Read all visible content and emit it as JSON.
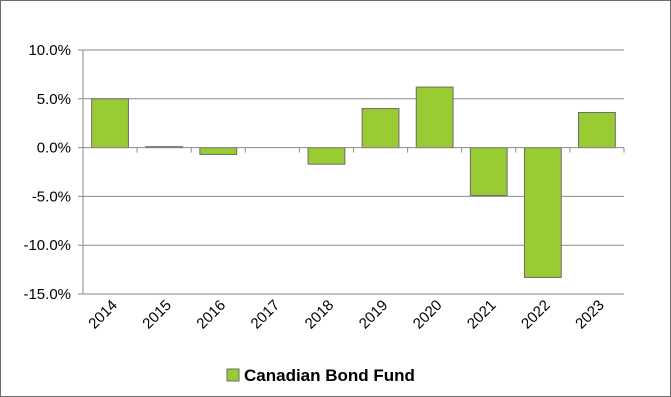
{
  "chart_data": {
    "type": "bar",
    "categories": [
      "2014",
      "2015",
      "2016",
      "2017",
      "2018",
      "2019",
      "2020",
      "2021",
      "2022",
      "2023"
    ],
    "series": [
      {
        "name": "Canadian Bond Fund",
        "values": [
          5.0,
          0.1,
          -0.7,
          0.0,
          -1.7,
          4.0,
          6.2,
          -4.9,
          -13.3,
          3.6
        ],
        "color": "#99cc33",
        "border_color": "#6b6b6b"
      }
    ],
    "y_ticks": [
      "10.0%",
      "5.0%",
      "0.0%",
      "-5.0%",
      "-10.0%",
      "-15.0%"
    ],
    "ylim": [
      -15,
      10
    ],
    "grid": true,
    "legend_position": "bottom"
  }
}
